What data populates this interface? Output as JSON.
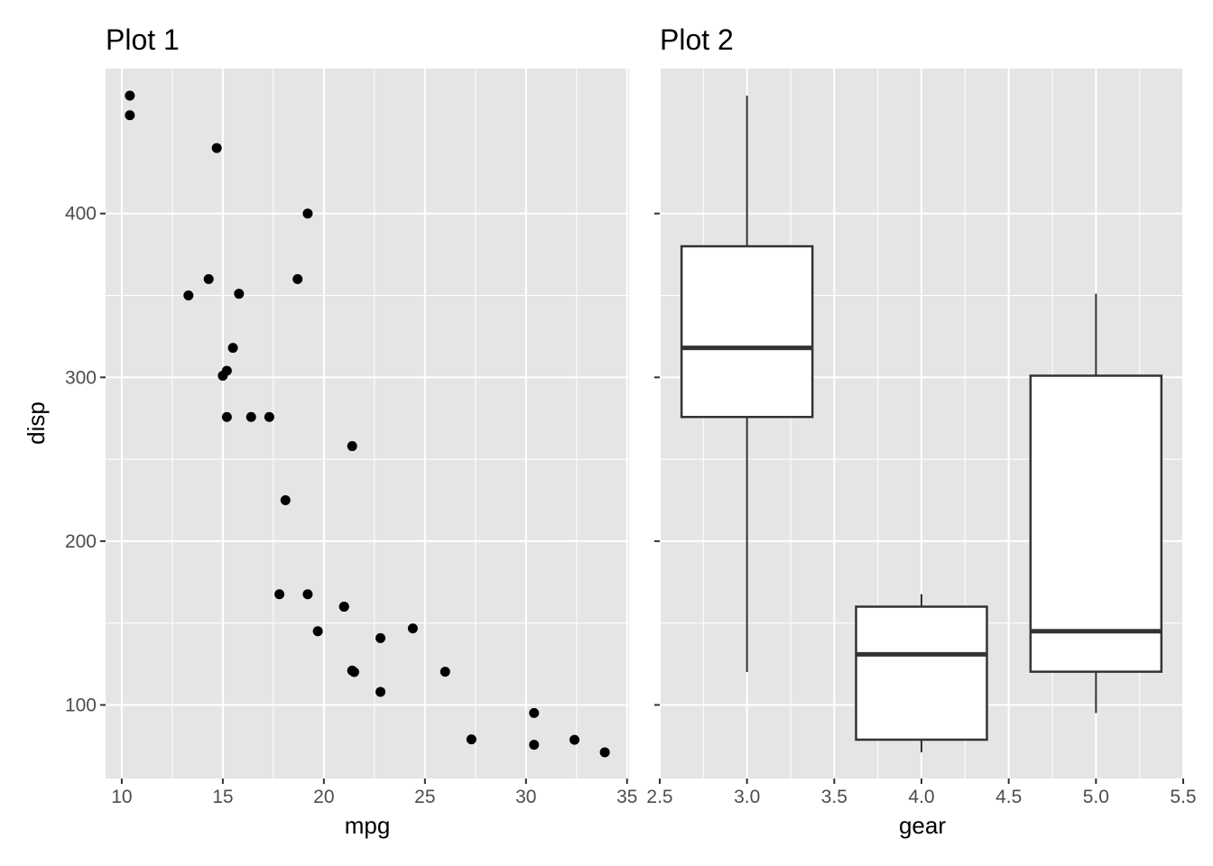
{
  "colors": {
    "panel_background": "#e5e5e5",
    "grid_line": "#ffffff",
    "point": "#000000",
    "box_fill": "#ffffff",
    "box_stroke": "#333333",
    "tick_mark": "#333333"
  },
  "chart_data": [
    {
      "type": "scatter",
      "title": "Plot 1",
      "xlabel": "mpg",
      "ylabel": "disp",
      "xlim": [
        9.2,
        35.1
      ],
      "ylim": [
        55.1,
        488.5
      ],
      "xticks": [
        10,
        15,
        20,
        25,
        30,
        35
      ],
      "yticks": [
        100,
        200,
        300,
        400
      ],
      "grid": true,
      "points": [
        {
          "x": 21.0,
          "y": 160
        },
        {
          "x": 21.0,
          "y": 160
        },
        {
          "x": 22.8,
          "y": 108
        },
        {
          "x": 21.4,
          "y": 258
        },
        {
          "x": 18.7,
          "y": 360
        },
        {
          "x": 18.1,
          "y": 225
        },
        {
          "x": 14.3,
          "y": 360
        },
        {
          "x": 24.4,
          "y": 146.7
        },
        {
          "x": 22.8,
          "y": 140.8
        },
        {
          "x": 19.2,
          "y": 167.6
        },
        {
          "x": 17.8,
          "y": 167.6
        },
        {
          "x": 16.4,
          "y": 275.8
        },
        {
          "x": 17.3,
          "y": 275.8
        },
        {
          "x": 15.2,
          "y": 275.8
        },
        {
          "x": 10.4,
          "y": 472
        },
        {
          "x": 10.4,
          "y": 460
        },
        {
          "x": 14.7,
          "y": 440
        },
        {
          "x": 32.4,
          "y": 78.7
        },
        {
          "x": 30.4,
          "y": 75.7
        },
        {
          "x": 33.9,
          "y": 71.1
        },
        {
          "x": 21.5,
          "y": 120.1
        },
        {
          "x": 15.5,
          "y": 318
        },
        {
          "x": 15.2,
          "y": 304
        },
        {
          "x": 13.3,
          "y": 350
        },
        {
          "x": 19.2,
          "y": 400
        },
        {
          "x": 27.3,
          "y": 79
        },
        {
          "x": 26.0,
          "y": 120.3
        },
        {
          "x": 30.4,
          "y": 95.1
        },
        {
          "x": 15.8,
          "y": 351
        },
        {
          "x": 19.7,
          "y": 145
        },
        {
          "x": 15.0,
          "y": 301
        },
        {
          "x": 21.4,
          "y": 121
        }
      ]
    },
    {
      "type": "boxplot",
      "title": "Plot 2",
      "xlabel": "gear",
      "xlim": [
        2.5,
        5.5
      ],
      "xticks": [
        "2.5",
        "3.0",
        "3.5",
        "4.0",
        "4.5",
        "5.0",
        "5.5"
      ],
      "grid": true,
      "boxes": [
        {
          "x": 3,
          "min": 120.1,
          "q1": 275.8,
          "median": 318,
          "q3": 380,
          "max": 472
        },
        {
          "x": 4,
          "min": 71.1,
          "q1": 78.8,
          "median": 130.9,
          "q3": 160,
          "max": 167.6
        },
        {
          "x": 5,
          "min": 95.1,
          "q1": 120.3,
          "median": 145,
          "q3": 301,
          "max": 351
        }
      ]
    }
  ]
}
